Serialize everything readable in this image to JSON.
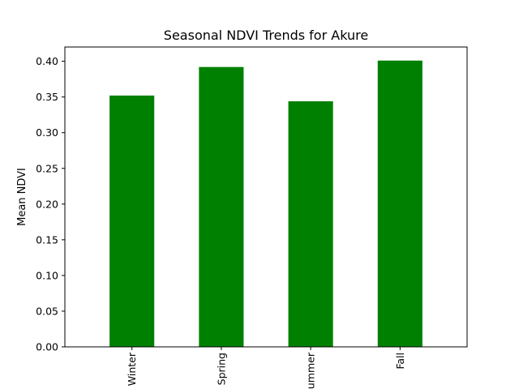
{
  "chart_data": {
    "type": "bar",
    "title": "Seasonal NDVI Trends for Akure",
    "xlabel": "",
    "ylabel": "Mean NDVI",
    "categories": [
      "Winter",
      "Spring",
      "Summer",
      "Fall"
    ],
    "values": [
      0.352,
      0.392,
      0.344,
      0.401
    ],
    "ylim": [
      0,
      0.42
    ],
    "yticks": [
      "0.00",
      "0.05",
      "0.10",
      "0.15",
      "0.20",
      "0.25",
      "0.30",
      "0.35",
      "0.40"
    ],
    "bar_color": "#008000",
    "grid": false,
    "legend": "none"
  }
}
